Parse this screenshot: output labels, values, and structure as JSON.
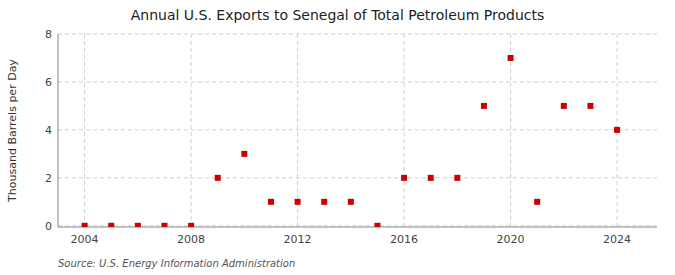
{
  "chart_data": {
    "type": "scatter",
    "title": "Annual U.S. Exports to Senegal of Total Petroleum Products",
    "ylabel": "Thousand Barrels per Day",
    "source": "Source: U.S. Energy Information Administration",
    "x": [
      2004,
      2005,
      2006,
      2007,
      2008,
      2009,
      2010,
      2011,
      2012,
      2013,
      2014,
      2015,
      2016,
      2017,
      2018,
      2019,
      2020,
      2021,
      2022,
      2023,
      2024
    ],
    "values": [
      0,
      0,
      0,
      0,
      0,
      2,
      3,
      1,
      1,
      1,
      1,
      0,
      2,
      2,
      2,
      5,
      7,
      1,
      5,
      5,
      4
    ],
    "color": "#cc0000",
    "marker": "square",
    "xlim": [
      2003.0,
      2025.5
    ],
    "ylim": [
      -0.05,
      8
    ],
    "xticks": [
      2004,
      2008,
      2012,
      2016,
      2020,
      2024
    ],
    "yticks": [
      0,
      2,
      4,
      6,
      8
    ],
    "grid": true
  }
}
